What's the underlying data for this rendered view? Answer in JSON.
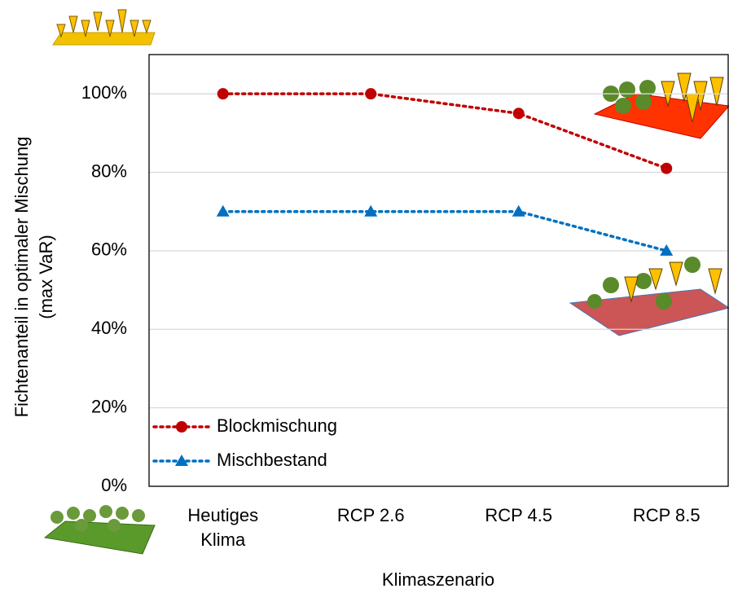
{
  "chart_data": {
    "type": "line",
    "y_label": [
      "Fichtenanteil in optimaler Mischung",
      "(max VaR)"
    ],
    "x_label": "Klimaszenario",
    "categories": [
      "Heutiges Klima",
      "RCP 2.6",
      "RCP 4.5",
      "RCP 8.5"
    ],
    "series": [
      {
        "name": "Blockmischung",
        "color": "#c00000",
        "marker": "circle",
        "values": [
          100,
          100,
          95,
          81
        ]
      },
      {
        "name": "Mischbestand",
        "color": "#0070c0",
        "marker": "triangle",
        "values": [
          70,
          70,
          70,
          60
        ]
      }
    ],
    "ylim": [
      0,
      110
    ],
    "yticks": [
      {
        "value": 0,
        "label": "0%"
      },
      {
        "value": 20,
        "label": "20%"
      },
      {
        "value": 40,
        "label": "40%"
      },
      {
        "value": 60,
        "label": "60%"
      },
      {
        "value": 80,
        "label": "80%"
      },
      {
        "value": 100,
        "label": "100%"
      }
    ],
    "grid": true,
    "legend": "lower left"
  }
}
